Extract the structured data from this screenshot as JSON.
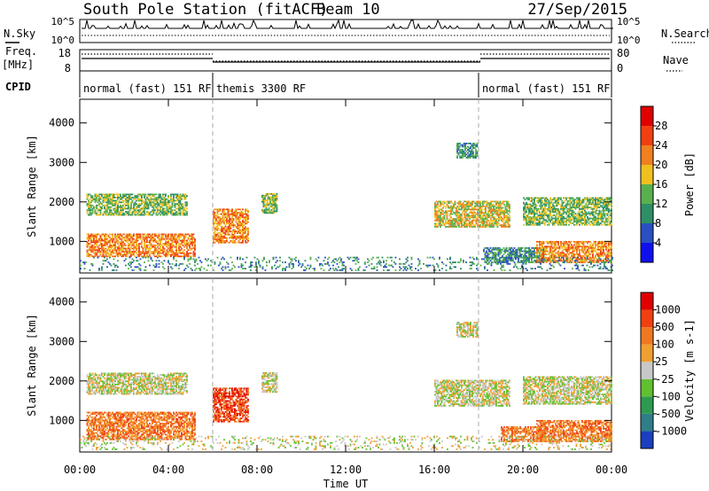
{
  "header": {
    "station": "South Pole Station (fitACF)",
    "beam": "Beam 10",
    "date": "27/Sep/2015"
  },
  "strips": {
    "nsky_label": "N.Sky",
    "nsearch_label": "N.Search",
    "nsky_ticks": [
      "10^5",
      "10^0"
    ],
    "nsearch_ticks": [
      "10^5",
      "10^0"
    ],
    "freq_label_line1": "Freq.",
    "freq_label_line2": "[MHz]",
    "freq_ticks": [
      "18",
      "8"
    ],
    "nave_label": "Nave",
    "nave_ticks": [
      "80",
      "0"
    ],
    "cpid_label": "CPID",
    "cpid_segments": [
      {
        "start_h": 0,
        "end_h": 6,
        "label": "normal (fast) 151 RF"
      },
      {
        "start_h": 6,
        "end_h": 18,
        "label": "themis 3300 RF"
      },
      {
        "start_h": 18,
        "end_h": 24,
        "label": "normal (fast) 151 RF"
      }
    ]
  },
  "chart_data": [
    {
      "type": "heatmap",
      "name": "power-panel",
      "ylabel": "Slant Range [km]",
      "yticks": [
        "1000",
        "2000",
        "3000",
        "4000"
      ],
      "ylim": [
        200,
        4600
      ],
      "xlim": [
        0,
        24
      ],
      "colorbar": {
        "label": "Power [dB]",
        "ticks": [
          "4",
          "8",
          "12",
          "16",
          "20",
          "24",
          "28"
        ],
        "colors": [
          "#1010ee",
          "#2a4fc0",
          "#2e8f66",
          "#58b04c",
          "#f0c020",
          "#f08020",
          "#f04010",
          "#e00000"
        ]
      },
      "regions": [
        {
          "t0": 0.3,
          "t1": 5.2,
          "r0": 600,
          "r1": 1200,
          "level": 5
        },
        {
          "t0": 0.3,
          "t1": 4.8,
          "r0": 1650,
          "r1": 2200,
          "level": 3
        },
        {
          "t0": 6.0,
          "t1": 7.6,
          "r0": 950,
          "r1": 1800,
          "level": 5
        },
        {
          "t0": 8.2,
          "t1": 8.9,
          "r0": 1700,
          "r1": 2200,
          "level": 3
        },
        {
          "t0": 16.0,
          "t1": 19.4,
          "r0": 1350,
          "r1": 2000,
          "level": 4
        },
        {
          "t0": 17.0,
          "t1": 17.9,
          "r0": 3100,
          "r1": 3500,
          "level": 2
        },
        {
          "t0": 18.2,
          "t1": 21.0,
          "r0": 450,
          "r1": 850,
          "level": 2
        },
        {
          "t0": 20.0,
          "t1": 24.0,
          "r0": 1400,
          "r1": 2100,
          "level": 3
        },
        {
          "t0": 20.6,
          "t1": 24.0,
          "r0": 450,
          "r1": 1000,
          "level": 5
        },
        {
          "t0": 0.0,
          "t1": 24.0,
          "r0": 250,
          "r1": 600,
          "level": 2
        }
      ]
    },
    {
      "type": "heatmap",
      "name": "velocity-panel",
      "ylabel": "Slant Range [km]",
      "xlabel": "Time UT",
      "xticks": [
        "00:00",
        "04:00",
        "08:00",
        "12:00",
        "16:00",
        "20:00",
        "00:00"
      ],
      "yticks": [
        "1000",
        "2000",
        "3000",
        "4000"
      ],
      "ylim": [
        200,
        4600
      ],
      "xlim": [
        0,
        24
      ],
      "colorbar": {
        "label": "Velocity [m s-1]",
        "ticks": [
          "1000",
          "500",
          "100",
          "25",
          "-25",
          "-100",
          "-500",
          "-1000"
        ],
        "colors": [
          "#1a3fc0",
          "#2e7f8a",
          "#2e9a50",
          "#60c030",
          "#c8c8c8",
          "#f0a030",
          "#f07820",
          "#f04010",
          "#e00000"
        ]
      },
      "regions": [
        {
          "t0": 0.3,
          "t1": 5.2,
          "r0": 500,
          "r1": 1200,
          "level": 6
        },
        {
          "t0": 0.3,
          "t1": 4.8,
          "r0": 1650,
          "r1": 2200,
          "level": 4
        },
        {
          "t0": 6.0,
          "t1": 7.6,
          "r0": 950,
          "r1": 1800,
          "level": 7
        },
        {
          "t0": 8.2,
          "t1": 8.9,
          "r0": 1700,
          "r1": 2200,
          "level": 4
        },
        {
          "t0": 16.0,
          "t1": 19.4,
          "r0": 1350,
          "r1": 2000,
          "level": 4
        },
        {
          "t0": 17.0,
          "t1": 17.9,
          "r0": 3100,
          "r1": 3500,
          "level": 4
        },
        {
          "t0": 19.0,
          "t1": 21.0,
          "r0": 450,
          "r1": 850,
          "level": 6
        },
        {
          "t0": 20.0,
          "t1": 24.0,
          "r0": 1400,
          "r1": 2100,
          "level": 4
        },
        {
          "t0": 20.6,
          "t1": 24.0,
          "r0": 450,
          "r1": 1000,
          "level": 6
        },
        {
          "t0": 0.0,
          "t1": 24.0,
          "r0": 250,
          "r1": 600,
          "level": 4
        }
      ]
    }
  ]
}
